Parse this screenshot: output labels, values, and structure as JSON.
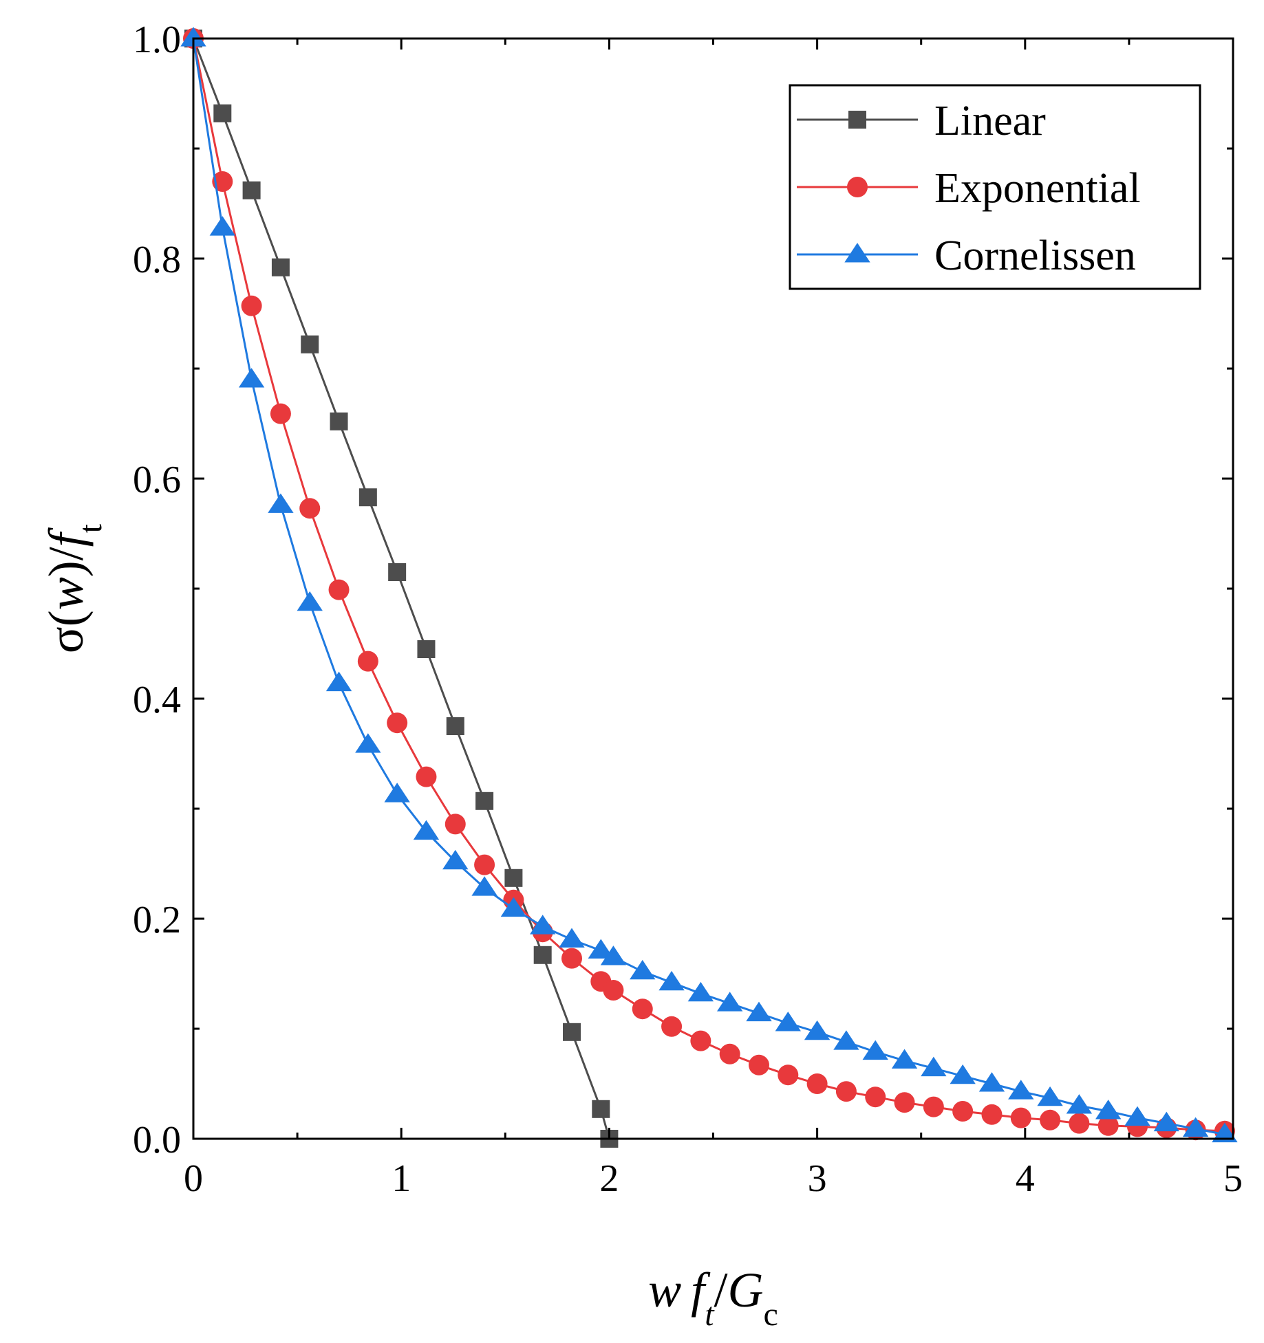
{
  "chart_data": {
    "type": "line",
    "title": "",
    "xlabel": "w f_t/G_c",
    "ylabel": "σ(w)/f_t",
    "xlim": [
      0,
      5
    ],
    "ylim": [
      0,
      1.0
    ],
    "x_ticks": [
      "0",
      "1",
      "2",
      "3",
      "4",
      "5"
    ],
    "y_ticks": [
      "0.0",
      "0.2",
      "0.4",
      "0.6",
      "0.8",
      "1.0"
    ],
    "x_tick_values": [
      0,
      1,
      2,
      3,
      4,
      5
    ],
    "y_tick_values": [
      0,
      0.2,
      0.4,
      0.6,
      0.8,
      1.0
    ],
    "legend_position": "top-right",
    "xlabel_parts": {
      "w": "w",
      "f": "f",
      "f_sub": "t",
      "slash": "/",
      "G": "G",
      "G_sub": "c"
    },
    "ylabel_parts": {
      "prefix": "σ(",
      "w": "w",
      "close": ")/",
      "f": "f",
      "f_sub": "t"
    },
    "series": [
      {
        "name": "Linear",
        "color": "#4d4d4d",
        "marker": "square",
        "x": [
          0,
          0.14,
          0.28,
          0.42,
          0.56,
          0.7,
          0.84,
          0.98,
          1.12,
          1.26,
          1.4,
          1.54,
          1.68,
          1.82,
          1.96,
          2.0
        ],
        "values": [
          1.0,
          0.932,
          0.862,
          0.792,
          0.722,
          0.652,
          0.583,
          0.515,
          0.445,
          0.375,
          0.307,
          0.237,
          0.167,
          0.097,
          0.027,
          0.0
        ]
      },
      {
        "name": "Exponential",
        "color": "#e8393c",
        "marker": "circle",
        "x": [
          0,
          0.14,
          0.28,
          0.42,
          0.56,
          0.7,
          0.84,
          0.98,
          1.12,
          1.26,
          1.4,
          1.54,
          1.68,
          1.82,
          1.96,
          2.02,
          2.16,
          2.3,
          2.44,
          2.58,
          2.72,
          2.86,
          3.0,
          3.14,
          3.28,
          3.42,
          3.56,
          3.7,
          3.84,
          3.98,
          4.12,
          4.26,
          4.4,
          4.54,
          4.68,
          4.82,
          4.96
        ],
        "values": [
          1.0,
          0.87,
          0.757,
          0.659,
          0.573,
          0.499,
          0.434,
          0.378,
          0.329,
          0.286,
          0.249,
          0.217,
          0.188,
          0.164,
          0.143,
          0.135,
          0.118,
          0.102,
          0.089,
          0.077,
          0.067,
          0.058,
          0.05,
          0.043,
          0.038,
          0.033,
          0.029,
          0.025,
          0.022,
          0.019,
          0.017,
          0.014,
          0.012,
          0.011,
          0.01,
          0.008,
          0.007
        ]
      },
      {
        "name": "Cornelissen",
        "color": "#1f7ae0",
        "marker": "triangle",
        "x": [
          0,
          0.14,
          0.28,
          0.42,
          0.56,
          0.7,
          0.84,
          0.98,
          1.12,
          1.26,
          1.4,
          1.54,
          1.68,
          1.82,
          1.96,
          2.02,
          2.16,
          2.3,
          2.44,
          2.58,
          2.72,
          2.86,
          3.0,
          3.14,
          3.28,
          3.42,
          3.56,
          3.7,
          3.84,
          3.98,
          4.12,
          4.26,
          4.4,
          4.54,
          4.68,
          4.82,
          4.96
        ],
        "values": [
          1.0,
          0.828,
          0.69,
          0.576,
          0.487,
          0.414,
          0.358,
          0.313,
          0.279,
          0.252,
          0.228,
          0.209,
          0.193,
          0.181,
          0.171,
          0.165,
          0.152,
          0.142,
          0.132,
          0.123,
          0.114,
          0.105,
          0.097,
          0.088,
          0.079,
          0.071,
          0.064,
          0.057,
          0.05,
          0.043,
          0.037,
          0.03,
          0.025,
          0.019,
          0.014,
          0.009,
          0.004
        ]
      }
    ]
  }
}
